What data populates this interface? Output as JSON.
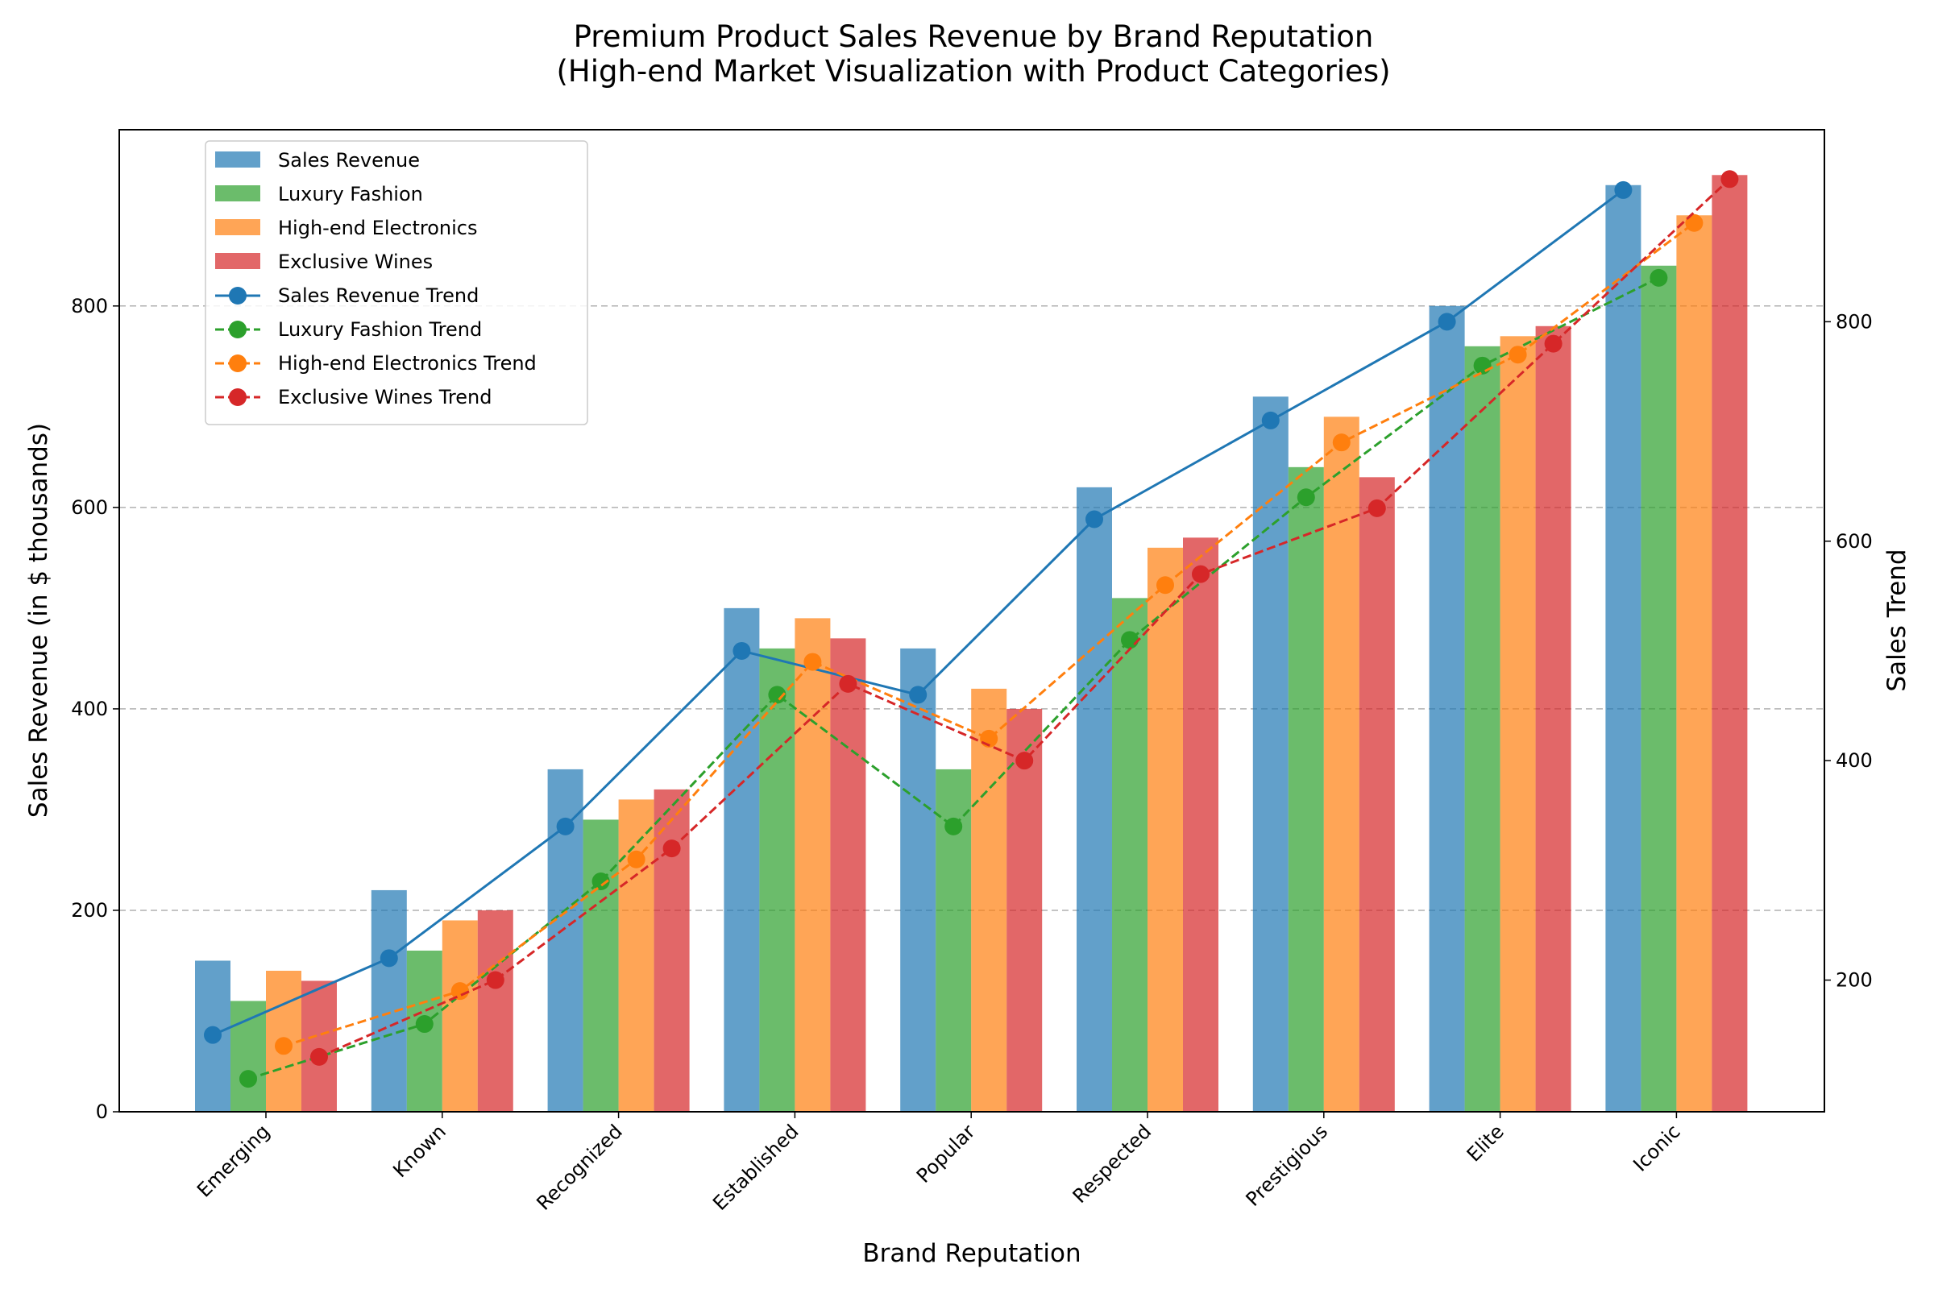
{
  "chart_data": {
    "type": "bar",
    "title": "Premium Product Sales Revenue by Brand Reputation",
    "subtitle": "(High-end Market Visualization with Product Categories)",
    "xlabel": "Brand Reputation",
    "ylabel": "Sales Revenue (in $ thousands)",
    "y2label": "Sales Trend",
    "categories": [
      "Emerging",
      "Known",
      "Recognized",
      "Established",
      "Popular",
      "Respected",
      "Prestigious",
      "Elite",
      "Iconic"
    ],
    "ylim": [
      0,
      975
    ],
    "y2lim": [
      80,
      975
    ],
    "yticks": [
      0,
      200,
      400,
      600,
      800
    ],
    "y2ticks": [
      200,
      400,
      600,
      800
    ],
    "grid": "y dashed",
    "legend_position": "top-left",
    "series": [
      {
        "name": "Sales Revenue",
        "color": "#1f77b4",
        "values": [
          150,
          220,
          340,
          500,
          460,
          620,
          710,
          800,
          920
        ]
      },
      {
        "name": "Luxury Fashion",
        "color": "#2ca02c",
        "values": [
          110,
          160,
          290,
          460,
          340,
          510,
          640,
          760,
          840
        ]
      },
      {
        "name": "High-end Electronics",
        "color": "#ff7f0e",
        "values": [
          140,
          190,
          310,
          490,
          420,
          560,
          690,
          770,
          890
        ]
      },
      {
        "name": "Exclusive Wines",
        "color": "#d62728",
        "values": [
          130,
          200,
          320,
          470,
          400,
          570,
          630,
          780,
          930
        ]
      }
    ],
    "trend_series": [
      {
        "name": "Sales Revenue Trend",
        "color": "#1f77b4",
        "style": "solid",
        "values": [
          150,
          220,
          340,
          500,
          460,
          620,
          710,
          800,
          920
        ]
      },
      {
        "name": "Luxury Fashion Trend",
        "color": "#2ca02c",
        "style": "dashed",
        "values": [
          110,
          160,
          290,
          460,
          340,
          510,
          640,
          760,
          840
        ]
      },
      {
        "name": "High-end Electronics Trend",
        "color": "#ff7f0e",
        "style": "dashed",
        "values": [
          140,
          190,
          310,
          490,
          420,
          560,
          690,
          770,
          890
        ]
      },
      {
        "name": "Exclusive Wines Trend",
        "color": "#d62728",
        "style": "dashed",
        "values": [
          130,
          200,
          320,
          470,
          400,
          570,
          630,
          780,
          930
        ]
      }
    ]
  }
}
